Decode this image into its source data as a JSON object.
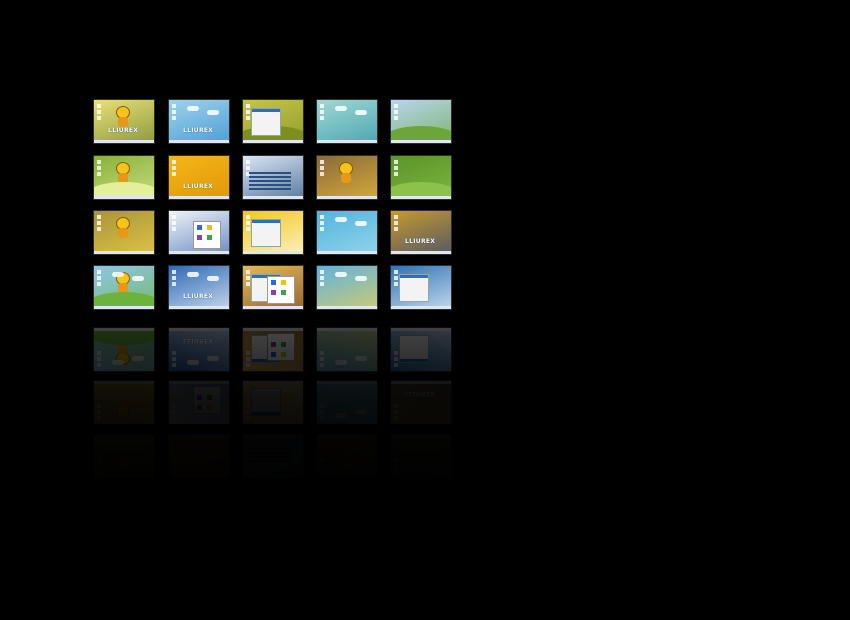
{
  "gallery": {
    "thumbnail_logo_text": "LLIUREX",
    "grid": [
      [
        {
          "name": "thumb-mascot-yellow",
          "bg": "#e8e07a",
          "accent": "#6a7f25"
        },
        {
          "name": "thumb-lliurex-blue-folder",
          "bg": "#9fd3ea",
          "accent": "#2a8bd0"
        },
        {
          "name": "thumb-green-burst",
          "bg": "#c6c44a",
          "accent": "#7e8f1f"
        },
        {
          "name": "thumb-teal-drop",
          "bg": "#9fd8d3",
          "accent": "#2f93a4"
        },
        {
          "name": "thumb-green-hills",
          "bg": "#b6d6ef",
          "accent": "#6ca63b"
        }
      ],
      [
        {
          "name": "thumb-green-swoosh",
          "bg": "#86b13a",
          "accent": "#e4ef9a"
        },
        {
          "name": "thumb-orange-logo",
          "bg": "#f4b71a",
          "accent": "#d88a00"
        },
        {
          "name": "thumb-info-sheet",
          "bg": "#d9e6f3",
          "accent": "#2b4f7f"
        },
        {
          "name": "thumb-mascot-brown",
          "bg": "#8a6a3a",
          "accent": "#f0c23a"
        },
        {
          "name": "thumb-green-desktop",
          "bg": "#5a9428",
          "accent": "#8cc24a"
        }
      ],
      [
        {
          "name": "thumb-mascot-olive",
          "bg": "#a8953a",
          "accent": "#f3d24a"
        },
        {
          "name": "thumb-character-panel",
          "bg": "#eef3f8",
          "accent": "#3a66b0"
        },
        {
          "name": "thumb-yellow-window",
          "bg": "#f2c81d",
          "accent": "#ffffff"
        },
        {
          "name": "thumb-cyan-wave",
          "bg": "#54b4dc",
          "accent": "#a6e0f2"
        },
        {
          "name": "thumb-lliurex-gold",
          "bg": "#c79a2d",
          "accent": "#2a3f7a"
        }
      ],
      [
        {
          "name": "thumb-sky-island",
          "bg": "#8fc7e8",
          "accent": "#6cb33e"
        },
        {
          "name": "thumb-blue-lliurex",
          "bg": "#2d6ab8",
          "accent": "#ffffff"
        },
        {
          "name": "thumb-icon-grid",
          "bg": "#e6b65a",
          "accent": "#7a4a1a"
        },
        {
          "name": "thumb-beach-sun",
          "bg": "#5fb3df",
          "accent": "#f4d34a"
        },
        {
          "name": "thumb-menu-open",
          "bg": "#2b73b8",
          "accent": "#ffffff"
        }
      ]
    ]
  }
}
